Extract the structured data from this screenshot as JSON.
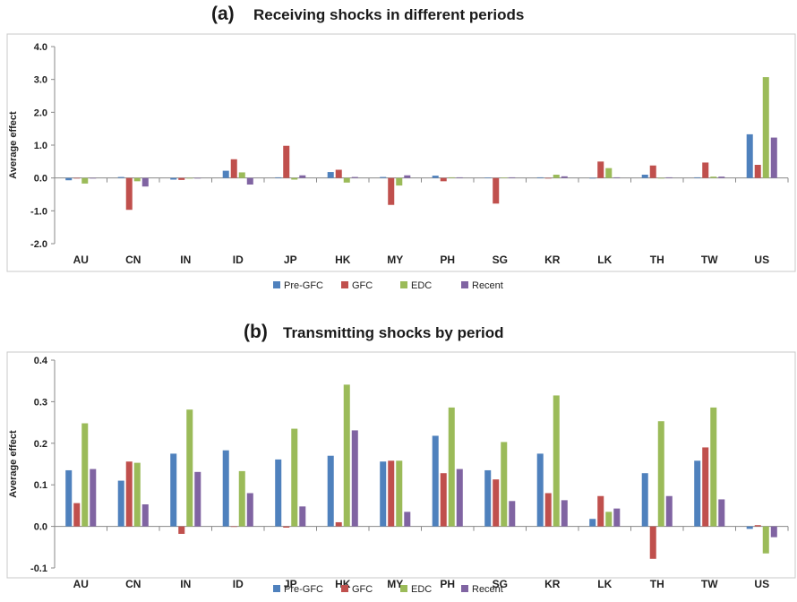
{
  "chart_data": [
    {
      "type": "bar",
      "panel_label": "(a)",
      "title": "Receiving shocks in different periods",
      "ylabel": "Average effect",
      "xlabel": "",
      "ylim": [
        -2.0,
        4.0
      ],
      "yticks": [
        "4.0",
        "3.0",
        "2.0",
        "1.0",
        "0.0",
        "-1.0",
        "-2.0"
      ],
      "categories": [
        "AU",
        "CN",
        "IN",
        "ID",
        "JP",
        "HK",
        "MY",
        "PH",
        "SG",
        "KR",
        "LK",
        "TH",
        "TW",
        "US"
      ],
      "series": [
        {
          "name": "Pre-GFC",
          "color": "#4F81BD",
          "values": [
            -0.07,
            0.03,
            -0.05,
            0.22,
            0.02,
            0.18,
            0.03,
            0.07,
            0.01,
            0.02,
            0.0,
            0.1,
            0.02,
            1.33
          ]
        },
        {
          "name": "GFC",
          "color": "#C0504D",
          "values": [
            0.0,
            -0.97,
            -0.06,
            0.57,
            0.98,
            0.25,
            -0.82,
            -0.1,
            -0.78,
            0.0,
            0.5,
            0.38,
            0.47,
            0.4
          ]
        },
        {
          "name": "EDC",
          "color": "#9BBB59",
          "values": [
            -0.17,
            -0.1,
            0.0,
            0.17,
            -0.05,
            -0.14,
            -0.23,
            0.02,
            0.01,
            0.1,
            0.3,
            0.0,
            0.04,
            3.07
          ]
        },
        {
          "name": "Recent",
          "color": "#8064A2",
          "values": [
            0.0,
            -0.26,
            0.0,
            -0.2,
            0.08,
            0.03,
            0.08,
            0.02,
            0.02,
            0.05,
            0.02,
            0.02,
            0.04,
            1.23
          ]
        }
      ],
      "legend_position": "bottom"
    },
    {
      "type": "bar",
      "panel_label": "(b)",
      "title": "Transmitting shocks by period",
      "ylabel": "Average effect",
      "xlabel": "",
      "ylim": [
        -0.1,
        0.4
      ],
      "yticks": [
        "0.4",
        "0.3",
        "0.2",
        "0.1",
        "0.0",
        "-0.1"
      ],
      "categories": [
        "AU",
        "CN",
        "IN",
        "ID",
        "JP",
        "HK",
        "MY",
        "PH",
        "SG",
        "KR",
        "LK",
        "TH",
        "TW",
        "US"
      ],
      "series": [
        {
          "name": "Pre-GFC",
          "color": "#4F81BD",
          "values": [
            0.135,
            0.11,
            0.175,
            0.183,
            0.161,
            0.17,
            0.156,
            0.218,
            0.135,
            0.175,
            0.018,
            0.128,
            0.158,
            -0.006
          ]
        },
        {
          "name": "GFC",
          "color": "#C0504D",
          "values": [
            0.056,
            0.156,
            -0.018,
            0.0,
            -0.003,
            0.01,
            0.158,
            0.128,
            0.113,
            0.08,
            0.073,
            -0.078,
            0.19,
            0.003
          ]
        },
        {
          "name": "EDC",
          "color": "#9BBB59",
          "values": [
            0.248,
            0.153,
            0.281,
            0.133,
            0.235,
            0.341,
            0.158,
            0.286,
            0.203,
            0.315,
            0.035,
            0.253,
            0.286,
            -0.065
          ]
        },
        {
          "name": "Recent",
          "color": "#8064A2",
          "values": [
            0.138,
            0.053,
            0.131,
            0.08,
            0.048,
            0.231,
            0.035,
            0.138,
            0.061,
            0.063,
            0.043,
            0.073,
            0.065,
            -0.026
          ]
        }
      ],
      "legend_position": "bottom"
    }
  ]
}
